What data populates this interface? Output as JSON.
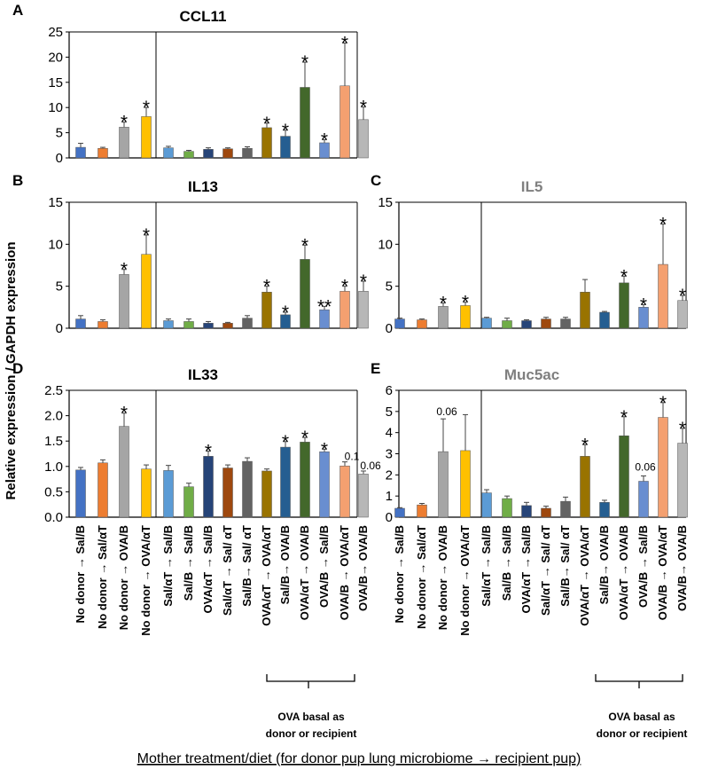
{
  "colors": [
    "#4472c4",
    "#ed7d31",
    "#a5a5a5",
    "#ffc000",
    "#5b9bd5",
    "#70ad47",
    "#264478",
    "#9e480e",
    "#636363",
    "#997300",
    "#255e91",
    "#43682b",
    "#698ed0",
    "#f4a070",
    "#b7b7b7"
  ],
  "group1_categories": [
    "No donor → Sal/B",
    "No donor → Sal/αT",
    "No donor → OVA/B",
    "No donor → OVA/αT"
  ],
  "group2_categories": [
    "Sal/αT → Sal/B",
    "Sal/B → Sal/B",
    "OVA/αT → Sal/B",
    "Sal/αT → Sal/ αT",
    "Sal/B→ Sal/ αT",
    "OVA/αT → OVA/αT",
    "Sal/B→ OVA/B",
    "OVA/αT → OVA/B",
    "OVA/B → Sal/B",
    "OVA/B → OVA/αT",
    "OVA/B→ OVA/B"
  ],
  "bracket_note_line1": "OVA basal as",
  "bracket_note_line2": "donor or recipient",
  "y_axis_label": "Relative expression / GAPDH expression",
  "x_axis_label": "Mother treatment/diet  (for donor pup lung microbiome → recipient pup)",
  "chart_data": [
    {
      "panel": "A",
      "type": "bar",
      "title": "CCL11",
      "title_color": "#000000",
      "ylim": [
        0,
        25
      ],
      "ticks": [
        0,
        5,
        10,
        15,
        20,
        25
      ],
      "values": [
        2.1,
        1.9,
        6.1,
        8.2,
        2.0,
        1.3,
        1.7,
        1.8,
        1.9,
        6.0,
        4.3,
        14.0,
        3.0,
        14.3,
        7.6
      ],
      "errors": [
        0.8,
        0.2,
        1.0,
        1.8,
        0.3,
        0.2,
        0.3,
        0.2,
        0.3,
        0.9,
        1.2,
        5.0,
        0.6,
        8.5,
        2.5
      ],
      "stars": [
        "",
        "",
        "*",
        "*",
        "",
        "",
        "",
        "",
        "",
        "*",
        "*",
        "*",
        "*",
        "*",
        "*"
      ]
    },
    {
      "panel": "B",
      "type": "bar",
      "title": "IL13",
      "title_color": "#000000",
      "ylim": [
        0,
        15
      ],
      "ticks": [
        0,
        5,
        10,
        15
      ],
      "values": [
        1.1,
        0.8,
        6.4,
        8.8,
        0.9,
        0.8,
        0.6,
        0.6,
        1.2,
        4.3,
        1.6,
        8.2,
        2.2,
        4.4,
        4.4
      ],
      "errors": [
        0.4,
        0.2,
        0.6,
        2.3,
        0.2,
        0.3,
        0.2,
        0.1,
        0.3,
        0.7,
        0.3,
        1.7,
        0.4,
        0.6,
        1.2
      ],
      "stars": [
        "",
        "",
        "*",
        "*",
        "",
        "",
        "",
        "",
        "",
        "*",
        "*",
        "*",
        "**",
        "*",
        "*"
      ]
    },
    {
      "panel": "C",
      "type": "bar",
      "title": "IL5",
      "title_color": "#7f7f7f",
      "ylim": [
        0,
        15
      ],
      "ticks": [
        0,
        5,
        10,
        15
      ],
      "values": [
        1.1,
        1.0,
        2.6,
        2.7,
        1.2,
        0.9,
        0.9,
        1.1,
        1.1,
        4.3,
        1.9,
        5.4,
        2.5,
        7.6,
        3.3
      ],
      "errors": [
        0.1,
        0.1,
        0.4,
        0.4,
        0.1,
        0.3,
        0.1,
        0.2,
        0.2,
        1.5,
        0.1,
        0.8,
        0.3,
        4.8,
        0.6
      ],
      "stars": [
        "",
        "",
        "*",
        "*",
        "",
        "",
        "",
        "",
        "",
        "",
        "",
        "*",
        "*",
        "*",
        "*"
      ]
    },
    {
      "panel": "D",
      "type": "bar",
      "title": "IL33",
      "title_color": "#000000",
      "ylim": [
        0,
        2.5
      ],
      "ticks": [
        0,
        0.5,
        1.0,
        1.5,
        2.0,
        2.5
      ],
      "tick_decimals": 1,
      "values": [
        0.93,
        1.07,
        1.79,
        0.95,
        0.92,
        0.6,
        1.2,
        0.97,
        1.1,
        0.91,
        1.38,
        1.48,
        1.29,
        1.01,
        0.85
      ],
      "errors": [
        0.05,
        0.06,
        0.26,
        0.08,
        0.1,
        0.07,
        0.1,
        0.06,
        0.07,
        0.04,
        0.11,
        0.09,
        0.05,
        0.08,
        0.06
      ],
      "stars": [
        "",
        "",
        "*",
        "",
        "",
        "",
        "*",
        "",
        "",
        "",
        "*",
        "*",
        "*",
        "",
        ""
      ],
      "annotations": [
        "",
        "",
        "",
        "",
        "",
        "",
        "",
        "",
        "",
        "",
        "",
        "",
        "",
        "0.1",
        "0.06"
      ]
    },
    {
      "panel": "E",
      "type": "bar",
      "title": "Muc5ac",
      "title_color": "#7f7f7f",
      "ylim": [
        0,
        6
      ],
      "ticks": [
        0,
        1,
        2,
        3,
        4,
        5,
        6
      ],
      "values": [
        0.42,
        0.58,
        3.1,
        3.15,
        1.15,
        0.88,
        0.55,
        0.42,
        0.75,
        2.88,
        0.7,
        3.85,
        1.7,
        4.72,
        3.5
      ],
      "errors": [
        0.03,
        0.07,
        1.55,
        1.7,
        0.15,
        0.12,
        0.15,
        0.1,
        0.2,
        0.55,
        0.1,
        0.9,
        0.25,
        0.7,
        0.7
      ],
      "stars": [
        "",
        "",
        "",
        "",
        "",
        "",
        "",
        "",
        "",
        "*",
        "",
        "*",
        "",
        "*",
        "*"
      ],
      "annotations": [
        "",
        "",
        "0.06",
        "",
        "",
        "",
        "",
        "",
        "",
        "",
        "",
        "",
        "0.06",
        "",
        ""
      ]
    }
  ]
}
